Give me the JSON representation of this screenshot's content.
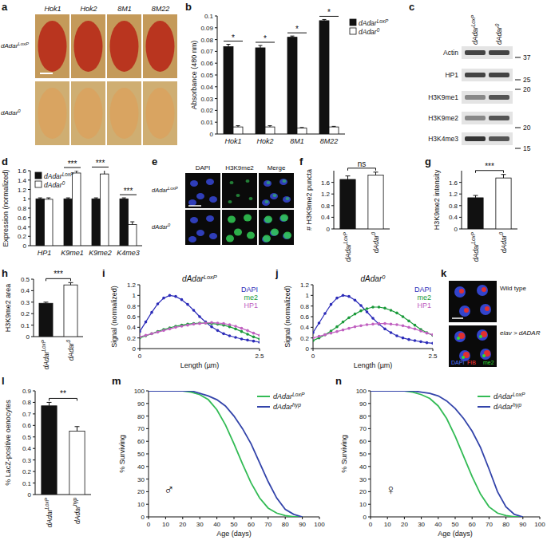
{
  "chart_data": [
    {
      "panel_label": "b",
      "type": "bar",
      "categories": [
        "Hok1",
        "Hok2",
        "8M1",
        "8M22"
      ],
      "y_label": "Absorbance (480 nm)",
      "ylim": [
        0,
        0.1
      ],
      "yticks": [
        0,
        0.01,
        0.02,
        0.03,
        0.04,
        0.05,
        0.06,
        0.07,
        0.08,
        0.09,
        0.1
      ],
      "legend": "right",
      "series": [
        {
          "name": "dAdarLoxP",
          "color": "#111111",
          "values": [
            0.074,
            0.073,
            0.082,
            0.096
          ],
          "errors": [
            0.002,
            0.002,
            0.001,
            0.001
          ]
        },
        {
          "name": "dAdar0",
          "color": "#ffffff",
          "values": [
            0.006,
            0.006,
            0.005,
            0.006
          ],
          "errors": [
            0.001,
            0.001,
            0.0005,
            0.0005
          ]
        }
      ],
      "significance": [
        "*",
        "*",
        "*",
        "*"
      ]
    },
    {
      "panel_label": "d",
      "type": "bar",
      "categories": [
        "HP1",
        "K9me1",
        "K9me2",
        "K4me3"
      ],
      "y_label": "Expression (normalized)",
      "ylim": [
        0,
        1.6
      ],
      "yticks": [
        0,
        0.2,
        0.4,
        0.6,
        0.8,
        1,
        1.2,
        1.4,
        1.6
      ],
      "legend": "top-left",
      "series": [
        {
          "name": "dAdarLoxP",
          "color": "#111111",
          "values": [
            1,
            1,
            1,
            1
          ],
          "errors": [
            0.02,
            0.02,
            0.02,
            0.02
          ]
        },
        {
          "name": "dAdar0",
          "color": "#ffffff",
          "values": [
            0.99,
            1.55,
            1.53,
            0.45
          ],
          "errors": [
            0.03,
            0.05,
            0.08,
            0.06
          ]
        }
      ],
      "significance": [
        null,
        "***",
        "***",
        "***"
      ]
    },
    {
      "panel_label": "f",
      "type": "bar",
      "categories": [
        "dAdarLoxP",
        "dAdar0"
      ],
      "values": [
        1.7,
        1.85
      ],
      "errors": [
        0.12,
        0.1
      ],
      "colors": [
        "#111111",
        "#ffffff"
      ],
      "y_label": "# H3K9me2 puncta",
      "ylim": [
        0,
        2
      ],
      "yticks": [
        0,
        0.4,
        0.8,
        1.2,
        1.6
      ],
      "significance": "ns"
    },
    {
      "panel_label": "g",
      "type": "bar",
      "categories": [
        "dAdarLoxP",
        "dAdar0"
      ],
      "values": [
        1.07,
        1.75
      ],
      "errors": [
        0.08,
        0.12
      ],
      "colors": [
        "#111111",
        "#ffffff"
      ],
      "y_label": "H3K9me2 intensity",
      "ylim": [
        0,
        2
      ],
      "yticks": [
        0,
        0.4,
        0.8,
        1.2,
        1.6
      ],
      "significance": "***"
    },
    {
      "panel_label": "h",
      "type": "bar",
      "categories": [
        "dAdarLoxP",
        "dAdar0"
      ],
      "values": [
        0.29,
        0.45
      ],
      "errors": [
        0.01,
        0.02
      ],
      "colors": [
        "#111111",
        "#ffffff"
      ],
      "y_label": "H3K9me2 area",
      "ylim": [
        0,
        0.5
      ],
      "yticks": [
        0,
        0.1,
        0.2,
        0.3,
        0.4,
        0.5
      ],
      "significance": "***"
    },
    {
      "panel_label": "i",
      "type": "line",
      "title": "dAdarLoxP",
      "x_label": "Length (µm)",
      "y_label": "Signal (normalized)",
      "xlim": [
        0,
        2.5
      ],
      "xticks": [
        0,
        2.5
      ],
      "ylim": [
        0,
        1.2
      ],
      "yticks": [
        0,
        0.2,
        0.4,
        0.6,
        0.8,
        1,
        1.2
      ],
      "legend": "top-right",
      "x": [
        0,
        0.125,
        0.25,
        0.375,
        0.5,
        0.625,
        0.75,
        0.875,
        1,
        1.125,
        1.25,
        1.375,
        1.5,
        1.625,
        1.75,
        1.875,
        2,
        2.125,
        2.25,
        2.375,
        2.5
      ],
      "series": [
        {
          "name": "DAPI",
          "color": "#2b2bb8",
          "marker": "circle",
          "values": [
            0.32,
            0.5,
            0.68,
            0.84,
            0.95,
            1.0,
            0.98,
            0.92,
            0.83,
            0.72,
            0.6,
            0.5,
            0.41,
            0.34,
            0.28,
            0.24,
            0.21,
            0.18,
            0.16,
            0.14,
            0.12
          ]
        },
        {
          "name": "me2",
          "color": "#1a9a3a",
          "marker": "circle",
          "values": [
            0.2,
            0.24,
            0.28,
            0.32,
            0.36,
            0.39,
            0.42,
            0.44,
            0.46,
            0.47,
            0.48,
            0.48,
            0.47,
            0.46,
            0.44,
            0.41,
            0.37,
            0.32,
            0.27,
            0.22,
            0.18
          ]
        },
        {
          "name": "HP1",
          "color": "#c060c0",
          "marker": "circle",
          "values": [
            0.22,
            0.25,
            0.28,
            0.31,
            0.34,
            0.37,
            0.4,
            0.42,
            0.44,
            0.46,
            0.47,
            0.48,
            0.49,
            0.48,
            0.47,
            0.45,
            0.42,
            0.38,
            0.34,
            0.29,
            0.25
          ]
        }
      ]
    },
    {
      "panel_label": "j",
      "type": "line",
      "title": "dAdar0",
      "x_label": "Length (µm)",
      "y_label": "Signal (normalized)",
      "xlim": [
        0,
        2.5
      ],
      "xticks": [
        0,
        2.5
      ],
      "ylim": [
        0,
        1.2
      ],
      "yticks": [
        0,
        0.2,
        0.4,
        0.6,
        0.8,
        1,
        1.2
      ],
      "legend": "top-right",
      "x": [
        0,
        0.125,
        0.25,
        0.375,
        0.5,
        0.625,
        0.75,
        0.875,
        1,
        1.125,
        1.25,
        1.375,
        1.5,
        1.625,
        1.75,
        1.875,
        2,
        2.125,
        2.25,
        2.375,
        2.5
      ],
      "series": [
        {
          "name": "DAPI",
          "color": "#2b2bb8",
          "marker": "circle",
          "values": [
            0.3,
            0.48,
            0.66,
            0.83,
            0.95,
            1.0,
            0.98,
            0.91,
            0.81,
            0.69,
            0.57,
            0.46,
            0.37,
            0.3,
            0.24,
            0.2,
            0.17,
            0.15,
            0.13,
            0.11,
            0.1
          ]
        },
        {
          "name": "me2",
          "color": "#1a9a3a",
          "marker": "circle",
          "values": [
            0.15,
            0.2,
            0.26,
            0.33,
            0.41,
            0.5,
            0.58,
            0.65,
            0.71,
            0.75,
            0.78,
            0.78,
            0.76,
            0.72,
            0.67,
            0.6,
            0.52,
            0.44,
            0.36,
            0.3,
            0.25
          ]
        },
        {
          "name": "HP1",
          "color": "#c060c0",
          "marker": "circle",
          "values": [
            0.2,
            0.23,
            0.26,
            0.29,
            0.32,
            0.35,
            0.38,
            0.41,
            0.43,
            0.45,
            0.46,
            0.47,
            0.47,
            0.46,
            0.45,
            0.43,
            0.4,
            0.37,
            0.33,
            0.29,
            0.26
          ]
        }
      ]
    },
    {
      "panel_label": "l",
      "type": "bar",
      "categories": [
        "dAdarLoxP",
        "dAdarhyp"
      ],
      "values": [
        0.77,
        0.55
      ],
      "errors": [
        0.03,
        0.04
      ],
      "colors": [
        "#111111",
        "#ffffff"
      ],
      "y_label": "% LacZ-positive oenocytes",
      "ylim": [
        0,
        0.9
      ],
      "yticks": [
        0,
        0.1,
        0.2,
        0.3,
        0.4,
        0.5,
        0.6,
        0.7,
        0.8,
        0.9
      ],
      "significance": "**"
    },
    {
      "panel_label": "m",
      "type": "line",
      "symbol": "♂",
      "x_label": "Age (days)",
      "y_label": "% Surviving",
      "xlim": [
        0,
        100
      ],
      "xticks": [
        0,
        10,
        20,
        30,
        40,
        50,
        60,
        70,
        80,
        90,
        100
      ],
      "ylim": [
        0,
        100
      ],
      "yticks": [
        0,
        10,
        20,
        30,
        40,
        50,
        60,
        70,
        80,
        90,
        100
      ],
      "legend": "top-right",
      "x": [
        0,
        5,
        10,
        15,
        20,
        25,
        30,
        35,
        40,
        45,
        50,
        55,
        60,
        65,
        70,
        75,
        80,
        85,
        90
      ],
      "series": [
        {
          "name": "dAdarLoxP",
          "color": "#33bb55",
          "values": [
            100,
            100,
            100,
            100,
            100,
            99,
            97,
            93,
            85,
            73,
            58,
            42,
            27,
            15,
            7,
            3,
            1,
            0,
            0
          ]
        },
        {
          "name": "dAdarhyp",
          "color": "#3344aa",
          "values": [
            100,
            100,
            100,
            100,
            100,
            100,
            98,
            96,
            93,
            88,
            80,
            70,
            58,
            43,
            28,
            15,
            6,
            2,
            0
          ]
        }
      ]
    },
    {
      "panel_label": "n",
      "type": "line",
      "symbol": "♀",
      "x_label": "Age (days)",
      "y_label": "% Surviving",
      "xlim": [
        0,
        100
      ],
      "xticks": [
        0,
        10,
        20,
        30,
        40,
        50,
        60,
        70,
        80,
        90,
        100
      ],
      "ylim": [
        0,
        100
      ],
      "yticks": [
        0,
        10,
        20,
        30,
        40,
        50,
        60,
        70,
        80,
        90,
        100
      ],
      "legend": "top-right",
      "x": [
        0,
        5,
        10,
        15,
        20,
        25,
        30,
        35,
        40,
        45,
        50,
        55,
        60,
        65,
        70,
        75,
        80,
        85,
        90
      ],
      "series": [
        {
          "name": "dAdarLoxP",
          "color": "#33bb55",
          "values": [
            100,
            100,
            100,
            100,
            100,
            99,
            97,
            94,
            88,
            78,
            64,
            48,
            32,
            18,
            8,
            3,
            1,
            0,
            0
          ]
        },
        {
          "name": "dAdarhyp",
          "color": "#3344aa",
          "values": [
            100,
            100,
            100,
            100,
            100,
            100,
            99,
            98,
            96,
            92,
            86,
            78,
            68,
            55,
            38,
            20,
            8,
            2,
            0
          ]
        }
      ]
    }
  ],
  "images": {
    "a": {
      "panel_label": "a",
      "columns": [
        "Hok1",
        "Hok2",
        "8M1",
        "8M22"
      ],
      "rows": [
        "dAdarLoxP",
        "dAdar0"
      ]
    },
    "c": {
      "panel_label": "c",
      "columns": [
        "dAdarLoxP",
        "dAdar0"
      ],
      "bands": [
        "Actin",
        "HP1",
        "H3K9me1",
        "H3K9me2",
        "H3K4me3"
      ],
      "markers": [
        37,
        25,
        20,
        20,
        15
      ]
    },
    "e": {
      "panel_label": "e",
      "columns": [
        "DAPI",
        "H3K9me2",
        "Merge"
      ],
      "rows": [
        "dAdarLoxP",
        "dAdar0"
      ]
    },
    "k": {
      "panel_label": "k",
      "rows": [
        "Wild type",
        "elav > dADAR"
      ],
      "channels": [
        {
          "name": "DAPI",
          "color": "#5577ff"
        },
        {
          "name": "FIB",
          "color": "#ff3b3b"
        },
        {
          "name": "me2",
          "color": "#33dd33"
        }
      ]
    }
  }
}
